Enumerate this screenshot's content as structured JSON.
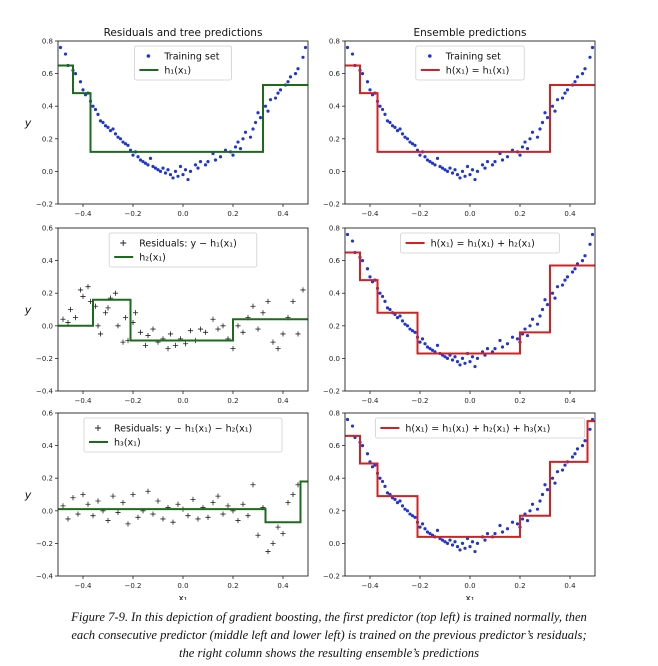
{
  "figure": {
    "caption_lines": [
      "Figure 7-9. In this depiction of gradient boosting, the first predictor (top left) is trained normally, then",
      "each consecutive predictor (middle left and lower left) is trained on the previous predictor’s residuals;",
      "the right column shows the resulting ensemble’s predictions"
    ]
  },
  "chart_data": [
    {
      "id": "r0c0",
      "type": "scatter",
      "title": "Residuals and tree predictions",
      "ylabel": "y",
      "xlabel": "",
      "xlim": [
        -0.5,
        0.5
      ],
      "ylim": [
        -0.2,
        0.8
      ],
      "xticks": [
        -0.4,
        -0.2,
        0.0,
        0.2,
        0.4
      ],
      "xtick_labels": [
        "−0.4",
        "−0.2",
        "0.0",
        "0.2",
        "0.4"
      ],
      "yticks": [
        -0.2,
        0.0,
        0.2,
        0.4,
        0.6,
        0.8
      ],
      "ytick_labels": [
        "−0.2",
        "0.0",
        "0.2",
        "0.4",
        "0.6",
        "0.8"
      ],
      "points_ref": "training",
      "marker": "dot",
      "marker_color": "#1f35d6",
      "step_ref": "h1",
      "line_color": "#1a6b1a",
      "legend": [
        {
          "marker": "dot",
          "color": "#1f35d6",
          "label": "Training set"
        },
        {
          "marker": "line",
          "color": "#1a6b1a",
          "label": "h₁(x₁)"
        }
      ]
    },
    {
      "id": "r0c1",
      "type": "scatter",
      "title": "Ensemble predictions",
      "ylabel": "",
      "xlabel": "",
      "xlim": [
        -0.5,
        0.5
      ],
      "ylim": [
        -0.2,
        0.8
      ],
      "xticks": [
        -0.4,
        -0.2,
        0.0,
        0.2,
        0.4
      ],
      "xtick_labels": [
        "−0.4",
        "−0.2",
        "0.0",
        "0.2",
        "0.4"
      ],
      "yticks": [
        -0.2,
        0.0,
        0.2,
        0.4,
        0.6,
        0.8
      ],
      "ytick_labels": [
        "−0.2",
        "0.0",
        "0.2",
        "0.4",
        "0.6",
        "0.8"
      ],
      "points_ref": "training",
      "marker": "dot",
      "marker_color": "#1f35d6",
      "step_ref": "h1",
      "line_color": "#d42020",
      "legend": [
        {
          "marker": "dot",
          "color": "#1f35d6",
          "label": "Training set"
        },
        {
          "marker": "line",
          "color": "#d42020",
          "label": "h(x₁) = h₁(x₁)"
        }
      ]
    },
    {
      "id": "r1c0",
      "type": "scatter",
      "title": "",
      "ylabel": "y",
      "xlabel": "",
      "xlim": [
        -0.5,
        0.5
      ],
      "ylim": [
        -0.4,
        0.6
      ],
      "xticks": [
        -0.4,
        -0.2,
        0.0,
        0.2,
        0.4
      ],
      "xtick_labels": [
        "−0.4",
        "−0.2",
        "0.0",
        "0.2",
        "0.4"
      ],
      "yticks": [
        -0.4,
        -0.2,
        0.0,
        0.2,
        0.4,
        0.6
      ],
      "ytick_labels": [
        "−0.4",
        "−0.2",
        "0.0",
        "0.2",
        "0.4",
        "0.6"
      ],
      "points_ref": "residuals1",
      "marker": "plus",
      "marker_color": "#222222",
      "step_ref": "h2",
      "line_color": "#1a6b1a",
      "legend": [
        {
          "marker": "plus",
          "color": "#222222",
          "label": "Residuals: y − h₁(x₁)"
        },
        {
          "marker": "line",
          "color": "#1a6b1a",
          "label": "h₂(x₁)"
        }
      ]
    },
    {
      "id": "r1c1",
      "type": "scatter",
      "title": "",
      "ylabel": "",
      "xlabel": "",
      "xlim": [
        -0.5,
        0.5
      ],
      "ylim": [
        -0.2,
        0.8
      ],
      "xticks": [
        -0.4,
        -0.2,
        0.0,
        0.2,
        0.4
      ],
      "xtick_labels": [
        "−0.4",
        "−0.2",
        "0.0",
        "0.2",
        "0.4"
      ],
      "yticks": [
        -0.2,
        0.0,
        0.2,
        0.4,
        0.6,
        0.8
      ],
      "ytick_labels": [
        "−0.2",
        "0.0",
        "0.2",
        "0.4",
        "0.6",
        "0.8"
      ],
      "points_ref": "training",
      "marker": "dot",
      "marker_color": "#1f35d6",
      "step_ref": "ens2",
      "line_color": "#d42020",
      "legend": [
        {
          "marker": "line",
          "color": "#d42020",
          "label": "h(x₁) = h₁(x₁) + h₂(x₁)"
        }
      ]
    },
    {
      "id": "r2c0",
      "type": "scatter",
      "title": "",
      "ylabel": "y",
      "xlabel": "x₁",
      "xlim": [
        -0.5,
        0.5
      ],
      "ylim": [
        -0.4,
        0.6
      ],
      "xticks": [
        -0.4,
        -0.2,
        0.0,
        0.2,
        0.4
      ],
      "xtick_labels": [
        "−0.4",
        "−0.2",
        "0.0",
        "0.2",
        "0.4"
      ],
      "yticks": [
        -0.4,
        -0.2,
        0.0,
        0.2,
        0.4,
        0.6
      ],
      "ytick_labels": [
        "−0.4",
        "−0.2",
        "0.0",
        "0.2",
        "0.4",
        "0.6"
      ],
      "points_ref": "residuals2",
      "marker": "plus",
      "marker_color": "#222222",
      "step_ref": "h3",
      "line_color": "#1a6b1a",
      "legend": [
        {
          "marker": "plus",
          "color": "#222222",
          "label": "Residuals: y − h₁(x₁) − h₂(x₁)"
        },
        {
          "marker": "line",
          "color": "#1a6b1a",
          "label": "h₃(x₁)"
        }
      ]
    },
    {
      "id": "r2c1",
      "type": "scatter",
      "title": "",
      "ylabel": "",
      "xlabel": "x₁",
      "xlim": [
        -0.5,
        0.5
      ],
      "ylim": [
        -0.2,
        0.8
      ],
      "xticks": [
        -0.4,
        -0.2,
        0.0,
        0.2,
        0.4
      ],
      "xtick_labels": [
        "−0.4",
        "−0.2",
        "0.0",
        "0.2",
        "0.4"
      ],
      "yticks": [
        -0.2,
        0.0,
        0.2,
        0.4,
        0.6,
        0.8
      ],
      "ytick_labels": [
        "−0.2",
        "0.0",
        "0.2",
        "0.4",
        "0.6",
        "0.8"
      ],
      "points_ref": "training",
      "marker": "dot",
      "marker_color": "#1f35d6",
      "step_ref": "ens3",
      "line_color": "#d42020",
      "legend": [
        {
          "marker": "line",
          "color": "#d42020",
          "label": "h(x₁) = h₁(x₁) + h₂(x₁) + h₃(x₁)"
        }
      ]
    }
  ],
  "series_data": {
    "training": {
      "x": [
        -0.49,
        -0.47,
        -0.46,
        -0.44,
        -0.43,
        -0.41,
        -0.4,
        -0.39,
        -0.38,
        -0.37,
        -0.36,
        -0.35,
        -0.34,
        -0.33,
        -0.32,
        -0.31,
        -0.3,
        -0.29,
        -0.28,
        -0.27,
        -0.26,
        -0.25,
        -0.24,
        -0.23,
        -0.22,
        -0.21,
        -0.2,
        -0.19,
        -0.18,
        -0.17,
        -0.16,
        -0.15,
        -0.14,
        -0.13,
        -0.12,
        -0.11,
        -0.1,
        -0.09,
        -0.08,
        -0.07,
        -0.06,
        -0.05,
        -0.04,
        -0.03,
        -0.02,
        -0.01,
        0.0,
        0.01,
        0.02,
        0.03,
        0.05,
        0.06,
        0.07,
        0.09,
        0.1,
        0.12,
        0.13,
        0.15,
        0.17,
        0.19,
        0.2,
        0.21,
        0.22,
        0.23,
        0.24,
        0.25,
        0.27,
        0.28,
        0.29,
        0.3,
        0.31,
        0.33,
        0.34,
        0.35,
        0.37,
        0.38,
        0.39,
        0.41,
        0.42,
        0.43,
        0.45,
        0.46,
        0.48,
        0.49
      ],
      "y": [
        0.76,
        0.72,
        0.65,
        0.62,
        0.6,
        0.55,
        0.5,
        0.47,
        0.48,
        0.43,
        0.4,
        0.38,
        0.35,
        0.31,
        0.3,
        0.28,
        0.27,
        0.25,
        0.26,
        0.23,
        0.21,
        0.2,
        0.18,
        0.17,
        0.16,
        0.13,
        0.1,
        0.12,
        0.09,
        0.07,
        0.06,
        0.05,
        0.04,
        0.08,
        0.03,
        0.02,
        0.01,
        0.0,
        0.02,
        -0.01,
        0.01,
        -0.02,
        -0.04,
        0.0,
        -0.03,
        0.03,
        -0.02,
        0.01,
        -0.05,
        0.0,
        0.04,
        0.02,
        0.06,
        0.04,
        0.06,
        0.11,
        0.07,
        0.09,
        0.13,
        0.12,
        0.1,
        0.15,
        0.18,
        0.14,
        0.2,
        0.24,
        0.21,
        0.26,
        0.3,
        0.36,
        0.33,
        0.4,
        0.37,
        0.44,
        0.45,
        0.48,
        0.5,
        0.53,
        0.55,
        0.58,
        0.6,
        0.63,
        0.7,
        0.76
      ]
    },
    "residuals1": {
      "x": [
        -0.48,
        -0.46,
        -0.45,
        -0.43,
        -0.41,
        -0.4,
        -0.38,
        -0.37,
        -0.35,
        -0.34,
        -0.33,
        -0.31,
        -0.3,
        -0.29,
        -0.27,
        -0.26,
        -0.24,
        -0.23,
        -0.22,
        -0.2,
        -0.19,
        -0.17,
        -0.15,
        -0.14,
        -0.12,
        -0.1,
        -0.08,
        -0.06,
        -0.05,
        -0.03,
        -0.01,
        0.01,
        0.03,
        0.05,
        0.07,
        0.09,
        0.12,
        0.14,
        0.16,
        0.18,
        0.2,
        0.22,
        0.24,
        0.26,
        0.28,
        0.3,
        0.32,
        0.34,
        0.36,
        0.38,
        0.4,
        0.42,
        0.44,
        0.46,
        0.48
      ],
      "y": [
        0.04,
        0.02,
        0.1,
        0.05,
        0.22,
        0.18,
        0.24,
        0.15,
        0.12,
        0.0,
        -0.05,
        0.08,
        0.11,
        0.17,
        0.2,
        0.0,
        -0.1,
        0.05,
        -0.09,
        0.02,
        0.08,
        -0.04,
        -0.12,
        -0.06,
        -0.02,
        -0.1,
        -0.08,
        -0.14,
        -0.05,
        -0.12,
        -0.08,
        -0.11,
        -0.03,
        -0.09,
        -0.02,
        -0.04,
        0.04,
        -0.02,
        0.0,
        -0.08,
        -0.14,
        0.0,
        -0.04,
        0.05,
        0.12,
        -0.02,
        0.08,
        0.15,
        -0.1,
        -0.14,
        -0.05,
        0.05,
        0.15,
        -0.05,
        0.22
      ]
    },
    "residuals2": {
      "x": [
        -0.48,
        -0.46,
        -0.44,
        -0.42,
        -0.4,
        -0.38,
        -0.36,
        -0.34,
        -0.32,
        -0.3,
        -0.28,
        -0.26,
        -0.24,
        -0.22,
        -0.2,
        -0.18,
        -0.16,
        -0.14,
        -0.12,
        -0.1,
        -0.08,
        -0.06,
        -0.04,
        -0.02,
        0.0,
        0.02,
        0.04,
        0.06,
        0.08,
        0.1,
        0.12,
        0.14,
        0.16,
        0.18,
        0.2,
        0.22,
        0.24,
        0.26,
        0.28,
        0.3,
        0.32,
        0.34,
        0.36,
        0.38,
        0.4,
        0.42,
        0.44,
        0.46
      ],
      "y": [
        0.03,
        -0.05,
        0.08,
        -0.02,
        0.1,
        0.04,
        -0.03,
        0.06,
        0.0,
        -0.06,
        0.09,
        -0.01,
        0.05,
        -0.08,
        0.1,
        -0.04,
        0.0,
        0.12,
        -0.02,
        0.06,
        -0.05,
        0.02,
        -0.07,
        0.04,
        0.01,
        -0.03,
        0.07,
        -0.05,
        0.02,
        -0.04,
        0.05,
        0.09,
        -0.02,
        0.03,
        0.0,
        -0.06,
        0.04,
        -0.03,
        0.16,
        -0.15,
        0.02,
        -0.25,
        -0.2,
        -0.1,
        -0.14,
        0.05,
        0.1,
        0.16
      ]
    },
    "steps": {
      "h1": [
        [
          -0.5,
          -0.44,
          0.65
        ],
        [
          -0.44,
          -0.37,
          0.48
        ],
        [
          -0.37,
          0.32,
          0.12
        ],
        [
          0.32,
          0.5,
          0.53
        ]
      ],
      "h2": [
        [
          -0.5,
          -0.36,
          0.0
        ],
        [
          -0.36,
          -0.21,
          0.16
        ],
        [
          -0.21,
          0.2,
          -0.09
        ],
        [
          0.2,
          0.5,
          0.04
        ]
      ],
      "h3": [
        [
          -0.5,
          0.33,
          0.01
        ],
        [
          0.33,
          0.47,
          -0.07
        ],
        [
          0.47,
          0.5,
          0.18
        ]
      ],
      "ens2": [
        [
          -0.5,
          -0.44,
          0.65
        ],
        [
          -0.44,
          -0.37,
          0.48
        ],
        [
          -0.37,
          -0.21,
          0.28
        ],
        [
          -0.21,
          0.2,
          0.03
        ],
        [
          0.2,
          0.32,
          0.16
        ],
        [
          0.32,
          0.5,
          0.57
        ]
      ],
      "ens3": [
        [
          -0.5,
          -0.44,
          0.66
        ],
        [
          -0.44,
          -0.37,
          0.49
        ],
        [
          -0.37,
          -0.21,
          0.29
        ],
        [
          -0.21,
          0.2,
          0.04
        ],
        [
          0.2,
          0.32,
          0.17
        ],
        [
          0.32,
          0.47,
          0.5
        ],
        [
          0.47,
          0.5,
          0.75
        ]
      ]
    }
  }
}
